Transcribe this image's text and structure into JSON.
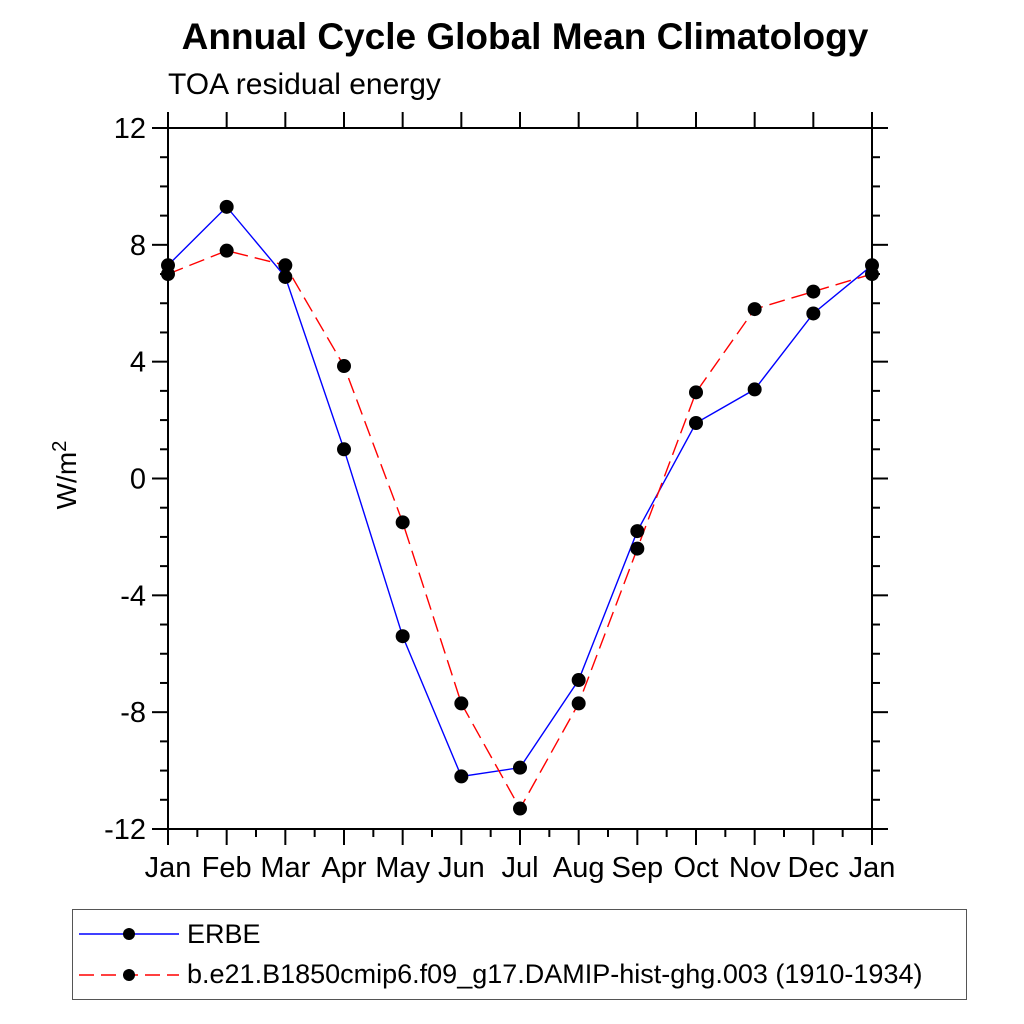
{
  "chart_data": {
    "type": "line",
    "title": "Annual Cycle Global Mean Climatology",
    "subtitle": "TOA residual energy",
    "ylabel": {
      "base": "W/m",
      "exponent": "2"
    },
    "categories": [
      "Jan",
      "Feb",
      "Mar",
      "Apr",
      "May",
      "Jun",
      "Jul",
      "Aug",
      "Sep",
      "Oct",
      "Nov",
      "Dec",
      "Jan"
    ],
    "ylim": [
      -12,
      12
    ],
    "ytick_major_step": 4,
    "ytick_minor_step": 1,
    "ytick_labels": [
      "-12",
      "-8",
      "-4",
      "0",
      "4",
      "8",
      "12"
    ],
    "grid": false,
    "legend_position": "bottom-left",
    "axis_color": "#000000",
    "marker_radius": 7,
    "series": [
      {
        "name": "ERBE",
        "color": "#0000ff",
        "line_style": "solid",
        "marker": "circle",
        "marker_color": "#000000",
        "values": [
          7.3,
          9.3,
          6.9,
          1.0,
          -5.4,
          -10.2,
          -9.9,
          -6.9,
          -1.8,
          1.9,
          3.05,
          5.65,
          7.3
        ]
      },
      {
        "name": "b.e21.B1850cmip6.f09_g17.DAMIP-hist-ghg.003 (1910-1934)",
        "color": "#ff0000",
        "line_style": "dashed",
        "marker": "circle",
        "marker_color": "#000000",
        "values": [
          7.0,
          7.8,
          7.3,
          3.85,
          -1.5,
          -7.7,
          -11.3,
          -7.7,
          -2.4,
          2.95,
          5.8,
          6.4,
          7.0
        ]
      }
    ]
  }
}
